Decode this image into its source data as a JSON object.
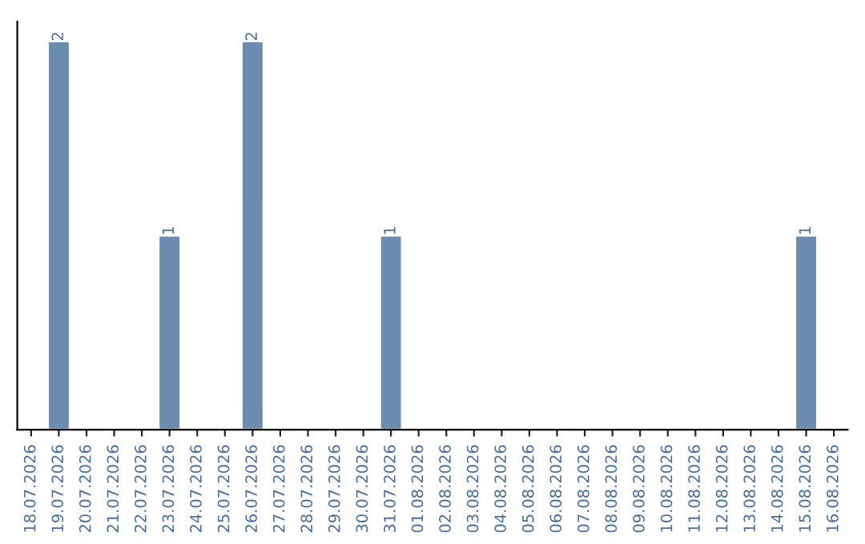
{
  "chart_data": {
    "type": "bar",
    "categories": [
      "18.07.2026",
      "19.07.2026",
      "20.07.2026",
      "21.07.2026",
      "22.07.2026",
      "23.07.2026",
      "24.07.2026",
      "25.07.2026",
      "26.07.2026",
      "27.07.2026",
      "28.07.2026",
      "29.07.2026",
      "30.07.2026",
      "31.07.2026",
      "01.08.2026",
      "02.08.2026",
      "03.08.2026",
      "04.08.2026",
      "05.08.2026",
      "06.08.2026",
      "07.08.2026",
      "08.08.2026",
      "09.08.2026",
      "10.08.2026",
      "11.08.2026",
      "12.08.2026",
      "13.08.2026",
      "14.08.2026",
      "15.08.2026",
      "16.08.2026"
    ],
    "values": [
      null,
      2,
      null,
      null,
      null,
      1,
      null,
      null,
      2,
      null,
      null,
      null,
      null,
      1,
      null,
      null,
      null,
      null,
      null,
      null,
      null,
      null,
      null,
      null,
      null,
      null,
      null,
      null,
      1,
      null
    ],
    "value_labels": [
      null,
      "2",
      null,
      null,
      null,
      "1",
      null,
      null,
      "2",
      null,
      null,
      null,
      null,
      "1",
      null,
      null,
      null,
      null,
      null,
      null,
      null,
      null,
      null,
      null,
      null,
      null,
      null,
      null,
      "1",
      null
    ],
    "color": "#6b8cae",
    "tick_labels": "x",
    "grid": false,
    "legend": false
  }
}
